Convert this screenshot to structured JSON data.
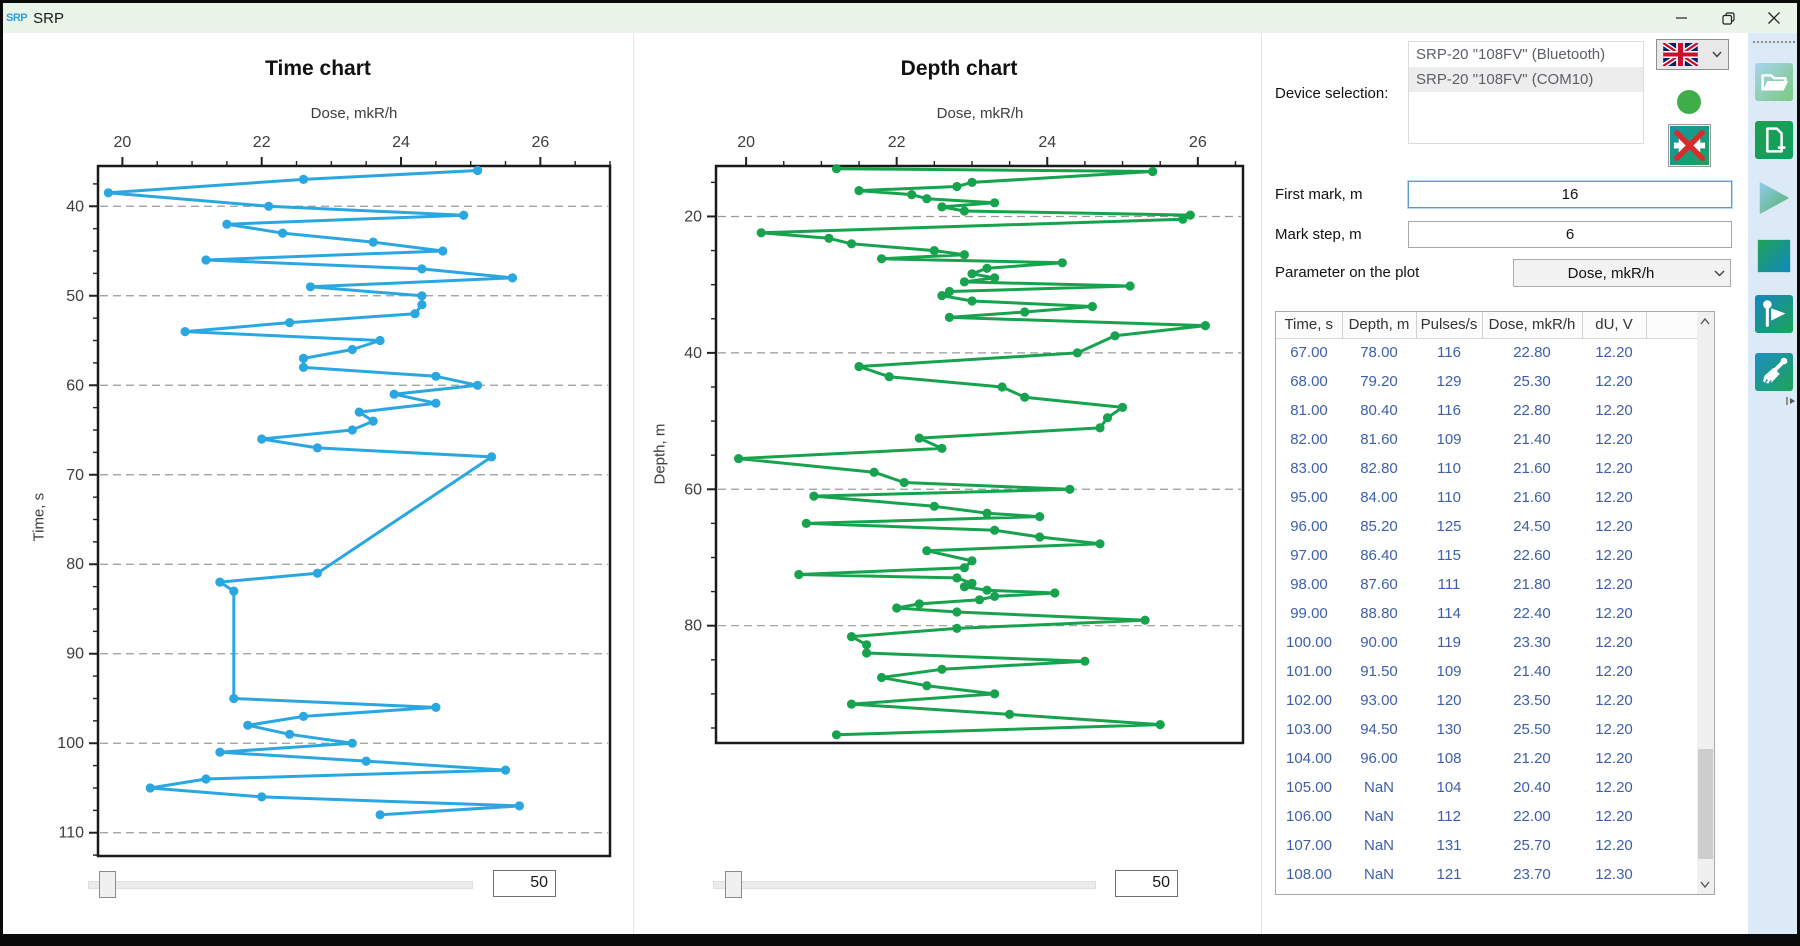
{
  "window": {
    "logo_text": "SRP",
    "title": "SRP"
  },
  "chart_data": [
    {
      "id": "time",
      "type": "line",
      "title": "Time chart",
      "xlabel": "Dose, mkR/h",
      "ylabel": "Time, s",
      "color": "#2aa7e0",
      "xlim": [
        19.65,
        27.0
      ],
      "ylim": [
        35.5,
        112.6
      ],
      "x_ticks": [
        20,
        22,
        24,
        26
      ],
      "y_ticks": [
        40,
        50,
        60,
        70,
        80,
        90,
        100,
        110
      ],
      "y_inverted": true,
      "grid": "dashed-horizontal",
      "points": [
        [
          25.1,
          36
        ],
        [
          22.6,
          37
        ],
        [
          19.8,
          38.5
        ],
        [
          22.1,
          40
        ],
        [
          24.9,
          41
        ],
        [
          21.5,
          42
        ],
        [
          22.3,
          43
        ],
        [
          23.6,
          44
        ],
        [
          24.6,
          45
        ],
        [
          21.2,
          46
        ],
        [
          24.3,
          47
        ],
        [
          25.6,
          48
        ],
        [
          22.7,
          49
        ],
        [
          24.3,
          50
        ],
        [
          24.3,
          51
        ],
        [
          24.2,
          52
        ],
        [
          22.4,
          53
        ],
        [
          20.9,
          54
        ],
        [
          23.7,
          55
        ],
        [
          23.3,
          56
        ],
        [
          22.6,
          57
        ],
        [
          22.6,
          58
        ],
        [
          24.5,
          59
        ],
        [
          25.1,
          60
        ],
        [
          23.9,
          61
        ],
        [
          24.5,
          62
        ],
        [
          23.4,
          63
        ],
        [
          23.6,
          64
        ],
        [
          23.3,
          65
        ],
        [
          22.0,
          66
        ],
        [
          22.8,
          67
        ],
        [
          25.3,
          68
        ],
        [
          22.8,
          81
        ],
        [
          21.4,
          82
        ],
        [
          21.6,
          83
        ],
        [
          21.6,
          95
        ],
        [
          24.5,
          96
        ],
        [
          22.6,
          97
        ],
        [
          21.8,
          98
        ],
        [
          22.4,
          99
        ],
        [
          23.3,
          100
        ],
        [
          21.4,
          101
        ],
        [
          23.5,
          102
        ],
        [
          25.5,
          103
        ],
        [
          21.2,
          104
        ],
        [
          20.4,
          105
        ],
        [
          22.0,
          106
        ],
        [
          25.7,
          107
        ],
        [
          23.7,
          108
        ]
      ]
    },
    {
      "id": "depth",
      "type": "line",
      "title": "Depth chart",
      "xlabel": "Dose, mkR/h",
      "ylabel": "Depth, m",
      "color": "#17a24e",
      "xlim": [
        19.6,
        26.6
      ],
      "ylim": [
        12.6,
        97.2
      ],
      "x_ticks": [
        20,
        22,
        24,
        26
      ],
      "y_ticks": [
        20,
        40,
        60,
        80
      ],
      "y_inverted": true,
      "grid": "dashed-horizontal",
      "points": [
        [
          21.2,
          13.0
        ],
        [
          25.4,
          13.4
        ],
        [
          23.0,
          15.0
        ],
        [
          22.8,
          15.6
        ],
        [
          21.5,
          16.2
        ],
        [
          22.2,
          16.8
        ],
        [
          22.4,
          17.4
        ],
        [
          23.3,
          18.0
        ],
        [
          22.6,
          18.6
        ],
        [
          22.9,
          19.2
        ],
        [
          25.9,
          19.8
        ],
        [
          25.8,
          20.4
        ],
        [
          20.2,
          22.4
        ],
        [
          21.1,
          23.2
        ],
        [
          21.4,
          24.0
        ],
        [
          22.5,
          25.0
        ],
        [
          22.9,
          25.6
        ],
        [
          21.8,
          26.2
        ],
        [
          24.2,
          26.8
        ],
        [
          23.2,
          27.6
        ],
        [
          23.0,
          28.4
        ],
        [
          23.3,
          29.0
        ],
        [
          22.9,
          29.6
        ],
        [
          25.1,
          30.2
        ],
        [
          22.7,
          31.0
        ],
        [
          22.6,
          31.6
        ],
        [
          23.0,
          32.4
        ],
        [
          24.6,
          33.2
        ],
        [
          23.7,
          34.0
        ],
        [
          22.7,
          34.8
        ],
        [
          26.1,
          36.0
        ],
        [
          24.9,
          37.5
        ],
        [
          24.4,
          40.0
        ],
        [
          21.5,
          42.0
        ],
        [
          21.9,
          43.5
        ],
        [
          23.4,
          45.0
        ],
        [
          23.7,
          46.5
        ],
        [
          25.0,
          48.0
        ],
        [
          24.8,
          49.5
        ],
        [
          24.7,
          51.0
        ],
        [
          22.3,
          52.5
        ],
        [
          22.6,
          54.0
        ],
        [
          19.9,
          55.5
        ],
        [
          21.7,
          57.5
        ],
        [
          22.1,
          59.0
        ],
        [
          24.3,
          60.0
        ],
        [
          20.9,
          61.0
        ],
        [
          22.5,
          62.5
        ],
        [
          23.2,
          63.5
        ],
        [
          23.9,
          64.0
        ],
        [
          20.8,
          65.0
        ],
        [
          23.3,
          66.0
        ],
        [
          23.9,
          67.0
        ],
        [
          24.7,
          68.0
        ],
        [
          22.4,
          69.0
        ],
        [
          23.0,
          70.5
        ],
        [
          22.9,
          71.5
        ],
        [
          20.7,
          72.5
        ],
        [
          22.8,
          73.0
        ],
        [
          23.0,
          73.8
        ],
        [
          22.9,
          74.3
        ],
        [
          23.2,
          74.8
        ],
        [
          24.1,
          75.2
        ],
        [
          23.3,
          75.7
        ],
        [
          23.1,
          76.2
        ],
        [
          22.3,
          76.8
        ],
        [
          22.0,
          77.4
        ],
        [
          22.8,
          78.0
        ],
        [
          25.3,
          79.2
        ],
        [
          22.8,
          80.4
        ],
        [
          21.4,
          81.6
        ],
        [
          21.6,
          82.8
        ],
        [
          21.6,
          84.0
        ],
        [
          24.5,
          85.2
        ],
        [
          22.6,
          86.4
        ],
        [
          21.8,
          87.6
        ],
        [
          22.4,
          88.8
        ],
        [
          23.3,
          90.0
        ],
        [
          21.4,
          91.5
        ],
        [
          23.5,
          93.0
        ],
        [
          25.5,
          94.5
        ],
        [
          21.2,
          96.0
        ]
      ]
    }
  ],
  "sliders": {
    "time": {
      "value": "50"
    },
    "depth": {
      "value": "50"
    }
  },
  "device": {
    "label": "Device selection:",
    "items": [
      "SRP-20 \"108FV\" (Bluetooth)",
      "SRP-20 \"108FV\" (COM10)"
    ],
    "selected_index": 1
  },
  "fields": {
    "first_mark": {
      "label": "First mark, m",
      "value": "16"
    },
    "mark_step": {
      "label": "Mark step, m",
      "value": "6"
    }
  },
  "parameter": {
    "label": "Parameter on the plot",
    "value": "Dose, mkR/h"
  },
  "table": {
    "columns": [
      "Time, s",
      "Depth, m",
      "Pulses/s",
      "Dose, mkR/h",
      "dU, V"
    ],
    "rows": [
      [
        "67.00",
        "78.00",
        "116",
        "22.80",
        "12.20"
      ],
      [
        "68.00",
        "79.20",
        "129",
        "25.30",
        "12.20"
      ],
      [
        "81.00",
        "80.40",
        "116",
        "22.80",
        "12.20"
      ],
      [
        "82.00",
        "81.60",
        "109",
        "21.40",
        "12.20"
      ],
      [
        "83.00",
        "82.80",
        "110",
        "21.60",
        "12.20"
      ],
      [
        "95.00",
        "84.00",
        "110",
        "21.60",
        "12.20"
      ],
      [
        "96.00",
        "85.20",
        "125",
        "24.50",
        "12.20"
      ],
      [
        "97.00",
        "86.40",
        "115",
        "22.60",
        "12.20"
      ],
      [
        "98.00",
        "87.60",
        "111",
        "21.80",
        "12.20"
      ],
      [
        "99.00",
        "88.80",
        "114",
        "22.40",
        "12.20"
      ],
      [
        "100.00",
        "90.00",
        "119",
        "23.30",
        "12.20"
      ],
      [
        "101.00",
        "91.50",
        "109",
        "21.40",
        "12.20"
      ],
      [
        "102.00",
        "93.00",
        "120",
        "23.50",
        "12.20"
      ],
      [
        "103.00",
        "94.50",
        "130",
        "25.50",
        "12.20"
      ],
      [
        "104.00",
        "96.00",
        "108",
        "21.20",
        "12.20"
      ],
      [
        "105.00",
        "NaN",
        "104",
        "20.40",
        "12.20"
      ],
      [
        "106.00",
        "NaN",
        "112",
        "22.00",
        "12.20"
      ],
      [
        "107.00",
        "NaN",
        "131",
        "25.70",
        "12.20"
      ],
      [
        "108.00",
        "NaN",
        "121",
        "23.70",
        "12.30"
      ]
    ]
  },
  "icons": {
    "language_flag": "uk-flag",
    "status": "green-circle",
    "disconnect": "disconnect-red-x",
    "toolbar": [
      "folder-open",
      "file-add",
      "play",
      "stop",
      "flag-marks",
      "brush-clear"
    ]
  }
}
